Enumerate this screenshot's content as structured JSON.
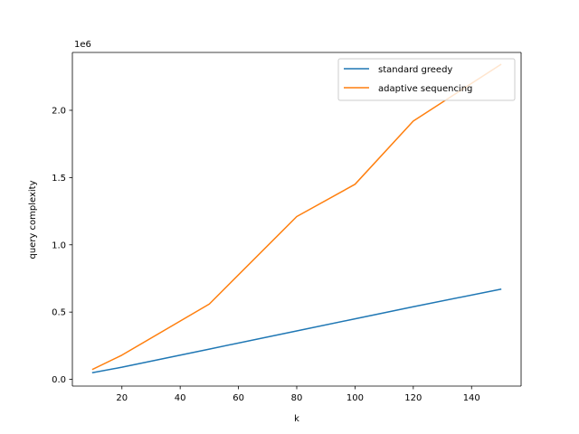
{
  "chart_data": {
    "type": "line",
    "title": "",
    "xlabel": "k",
    "ylabel": "query complexity",
    "y_scale_label": "1e6",
    "xlim": [
      3,
      157
    ],
    "ylim": [
      -0.05,
      2.43
    ],
    "x_ticks": [
      20,
      40,
      60,
      80,
      100,
      120,
      140
    ],
    "x_tick_labels": [
      "20",
      "40",
      "60",
      "80",
      "100",
      "120",
      "140"
    ],
    "y_ticks": [
      0.0,
      0.5,
      1.0,
      1.5,
      2.0
    ],
    "y_tick_labels": [
      "0.0",
      "0.5",
      "1.0",
      "1.5",
      "2.0"
    ],
    "grid": false,
    "legend_position": "top-right",
    "series": [
      {
        "name": "standard greedy",
        "color": "#1f77b4",
        "x": [
          10,
          20,
          50,
          80,
          100,
          120,
          150
        ],
        "y": [
          0.05,
          0.09,
          0.225,
          0.36,
          0.45,
          0.54,
          0.67
        ]
      },
      {
        "name": "adaptive sequencing",
        "color": "#ff7f0e",
        "x": [
          10,
          20,
          50,
          80,
          100,
          120,
          150
        ],
        "y": [
          0.075,
          0.18,
          0.56,
          1.21,
          1.45,
          1.92,
          2.34
        ]
      }
    ]
  }
}
